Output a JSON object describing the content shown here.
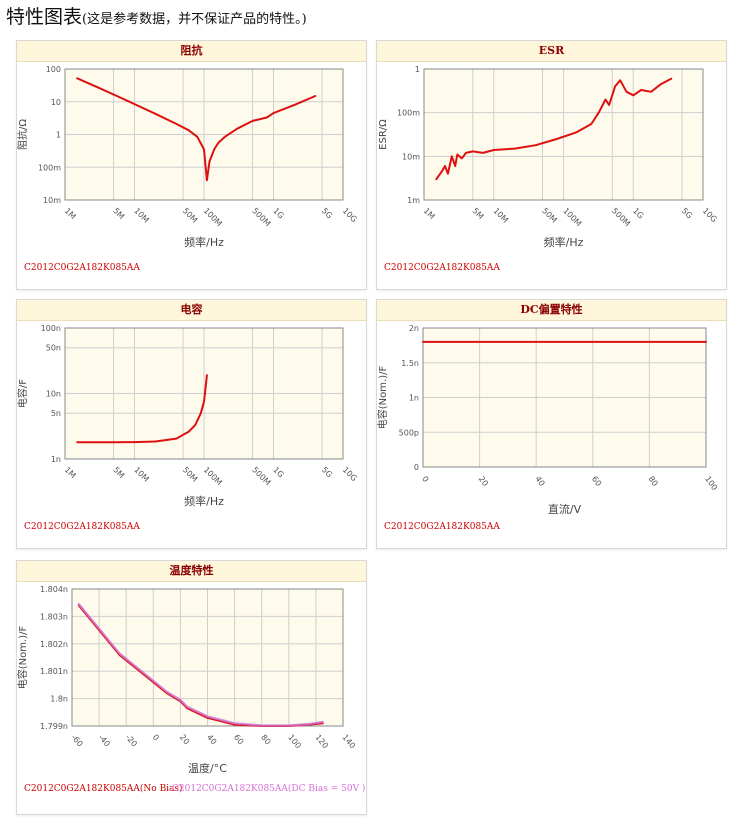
{
  "page": {
    "title": "特性图表",
    "subtitle": "(这是参考数据，并不保证产品的特性。)"
  },
  "colors": {
    "line_red": "#dd1111",
    "line_pink": "#d070d0",
    "plot_bg": "#fefbec",
    "header_bg": "#fdf6da",
    "header_text": "#8b0000",
    "grid": "#cfcfcf",
    "part_red": "#cc0000",
    "part_pink": "#d66fd6"
  },
  "chart_data": [
    {
      "id": "impedance",
      "type": "line",
      "title": "阻抗",
      "xlabel": "频率/Hz",
      "ylabel": "阻抗/Ω",
      "x_scale": "log",
      "y_scale": "log",
      "xlim": [
        1000000,
        10000000000
      ],
      "ylim": [
        0.01,
        100
      ],
      "x_ticks": [
        "1M",
        "5M",
        "10M",
        "50M",
        "100M",
        "500M",
        "1G",
        "5G",
        "10G"
      ],
      "y_ticks": [
        "100",
        "10",
        "1",
        "100m",
        "10m"
      ],
      "grid": true,
      "series": [
        {
          "name": "C2012C0G2A182K085AA",
          "color": "#dd1111",
          "x": [
            1500000,
            3000000,
            6000000,
            10000000,
            20000000,
            40000000,
            60000000,
            80000000,
            100000000,
            110000000,
            120000000,
            140000000,
            160000000,
            200000000,
            300000000,
            500000000,
            800000000,
            1000000000,
            2000000000,
            4000000000
          ],
          "y": [
            52,
            27,
            14,
            8.5,
            4.3,
            2.1,
            1.35,
            0.85,
            0.35,
            0.04,
            0.15,
            0.35,
            0.55,
            0.85,
            1.5,
            2.6,
            3.3,
            4.5,
            8.0,
            15.0
          ]
        }
      ]
    },
    {
      "id": "esr",
      "type": "line",
      "title": "ESR",
      "xlabel": "频率/Hz",
      "ylabel": "ESR/Ω",
      "x_scale": "log",
      "y_scale": "log",
      "xlim": [
        1000000,
        10000000000
      ],
      "ylim": [
        0.001,
        1
      ],
      "x_ticks": [
        "1M",
        "5M",
        "10M",
        "50M",
        "100M",
        "500M",
        "1G",
        "5G",
        "10G"
      ],
      "y_ticks": [
        "1",
        "100m",
        "10m",
        "1m"
      ],
      "grid": true,
      "series": [
        {
          "name": "C2012C0G2A182K085AA",
          "color": "#dd1111",
          "x": [
            1500000,
            1800000,
            2000000,
            2200000,
            2500000,
            2800000,
            3000000,
            3500000,
            4000000,
            5000000,
            7000000,
            10000000,
            20000000,
            40000000,
            80000000,
            150000000,
            250000000,
            320000000,
            400000000,
            450000000,
            550000000,
            650000000,
            800000000,
            1000000000,
            1300000000,
            1800000000,
            2500000000,
            3500000000
          ],
          "y": [
            0.003,
            0.0045,
            0.006,
            0.004,
            0.01,
            0.006,
            0.011,
            0.009,
            0.012,
            0.013,
            0.012,
            0.014,
            0.015,
            0.018,
            0.025,
            0.035,
            0.055,
            0.1,
            0.2,
            0.15,
            0.4,
            0.55,
            0.3,
            0.25,
            0.33,
            0.3,
            0.45,
            0.6
          ]
        }
      ]
    },
    {
      "id": "capacitance",
      "type": "line",
      "title": "电容",
      "xlabel": "频率/Hz",
      "ylabel": "电容/F",
      "x_scale": "log",
      "y_scale": "log",
      "xlim": [
        1000000,
        10000000000
      ],
      "ylim": [
        1e-09,
        1e-07
      ],
      "x_ticks": [
        "1M",
        "5M",
        "10M",
        "50M",
        "100M",
        "500M",
        "1G",
        "5G",
        "10G"
      ],
      "y_ticks": [
        "100n",
        "50n",
        "10n",
        "5n",
        "1n"
      ],
      "y_tick_values": [
        1e-07,
        5e-08,
        1e-08,
        5e-09,
        1e-09
      ],
      "grid": true,
      "series": [
        {
          "name": "C2012C0G2A182K085AA",
          "color": "#dd1111",
          "x": [
            1500000,
            5000000,
            10000000,
            20000000,
            40000000,
            60000000,
            75000000,
            90000000,
            100000000,
            105000000,
            110000000
          ],
          "y": [
            1.8e-09,
            1.8e-09,
            1.81e-09,
            1.85e-09,
            2.05e-09,
            2.6e-09,
            3.3e-09,
            5e-09,
            7.5e-09,
            1.2e-08,
            1.9e-08
          ]
        }
      ]
    },
    {
      "id": "dc_bias",
      "type": "line",
      "title": "DC偏置特性",
      "xlabel": "直流/V",
      "ylabel": "电容(Nom.)/F",
      "x_scale": "linear",
      "y_scale": "linear",
      "xlim": [
        0,
        100
      ],
      "ylim": [
        0,
        2e-09
      ],
      "x_ticks": [
        "0",
        "20",
        "40",
        "60",
        "80",
        "100"
      ],
      "y_ticks": [
        "2n",
        "1.5n",
        "1n",
        "500p",
        "0"
      ],
      "y_tick_values": [
        2e-09,
        1.5e-09,
        1e-09,
        5e-10,
        0
      ],
      "grid": true,
      "series": [
        {
          "name": "C2012C0G2A182K085AA",
          "color": "#dd1111",
          "x": [
            0,
            20,
            40,
            60,
            80,
            100
          ],
          "y": [
            1.8e-09,
            1.8e-09,
            1.8e-09,
            1.8e-09,
            1.8e-09,
            1.8e-09
          ]
        }
      ]
    },
    {
      "id": "temperature",
      "type": "line",
      "title": "温度特性",
      "xlabel": "温度/°C",
      "ylabel": "电容(Nom.)/F",
      "x_scale": "linear",
      "y_scale": "linear",
      "xlim": [
        -60,
        140
      ],
      "ylim": [
        1.799e-09,
        1.804e-09
      ],
      "x_ticks": [
        "-60",
        "-40",
        "-20",
        "0",
        "20",
        "40",
        "60",
        "80",
        "100",
        "120",
        "140"
      ],
      "y_ticks": [
        "1.804n",
        "1.803n",
        "1.802n",
        "1.801n",
        "1.8n",
        "1.799n"
      ],
      "y_tick_values": [
        1.804e-09,
        1.803e-09,
        1.802e-09,
        1.801e-09,
        1.8e-09,
        1.799e-09
      ],
      "grid": true,
      "series": [
        {
          "name": "C2012C0G2A182K085AA(No Bias)",
          "color": "#dd1111",
          "x": [
            -55,
            -40,
            -25,
            -10,
            0,
            10,
            20,
            25,
            40,
            60,
            80,
            100,
            115,
            125
          ],
          "y": [
            1.8034e-09,
            1.8025e-09,
            1.8016e-09,
            1.801e-09,
            1.8006e-09,
            1.8002e-09,
            1.7999e-09,
            1.79965e-09,
            1.7993e-09,
            1.79905e-09,
            1.799e-09,
            1.799e-09,
            1.79905e-09,
            1.7991e-09
          ]
        },
        {
          "name": "C2012C0G2A182K085AA(DC Bias = 50V )",
          "color": "#d070d0",
          "x": [
            -55,
            -40,
            -25,
            -10,
            0,
            10,
            20,
            25,
            40,
            60,
            80,
            100,
            115,
            125
          ],
          "y": [
            1.80345e-09,
            1.80255e-09,
            1.80165e-09,
            1.80105e-09,
            1.80065e-09,
            1.80025e-09,
            1.79995e-09,
            1.7997e-09,
            1.79935e-09,
            1.7991e-09,
            1.79902e-09,
            1.79902e-09,
            1.79907e-09,
            1.79915e-09
          ]
        }
      ]
    }
  ],
  "part_labels": {
    "impedance": "C2012C0G2A182K085AA",
    "esr": "C2012C0G2A182K085AA",
    "capacitance": "C2012C0G2A182K085AA",
    "dc_bias": "C2012C0G2A182K085AA",
    "temp_no_bias": "C2012C0G2A182K085AA(No Bias)",
    "temp_dc_bias": "C2012C0G2A182K085AA(DC Bias = 50V )"
  }
}
